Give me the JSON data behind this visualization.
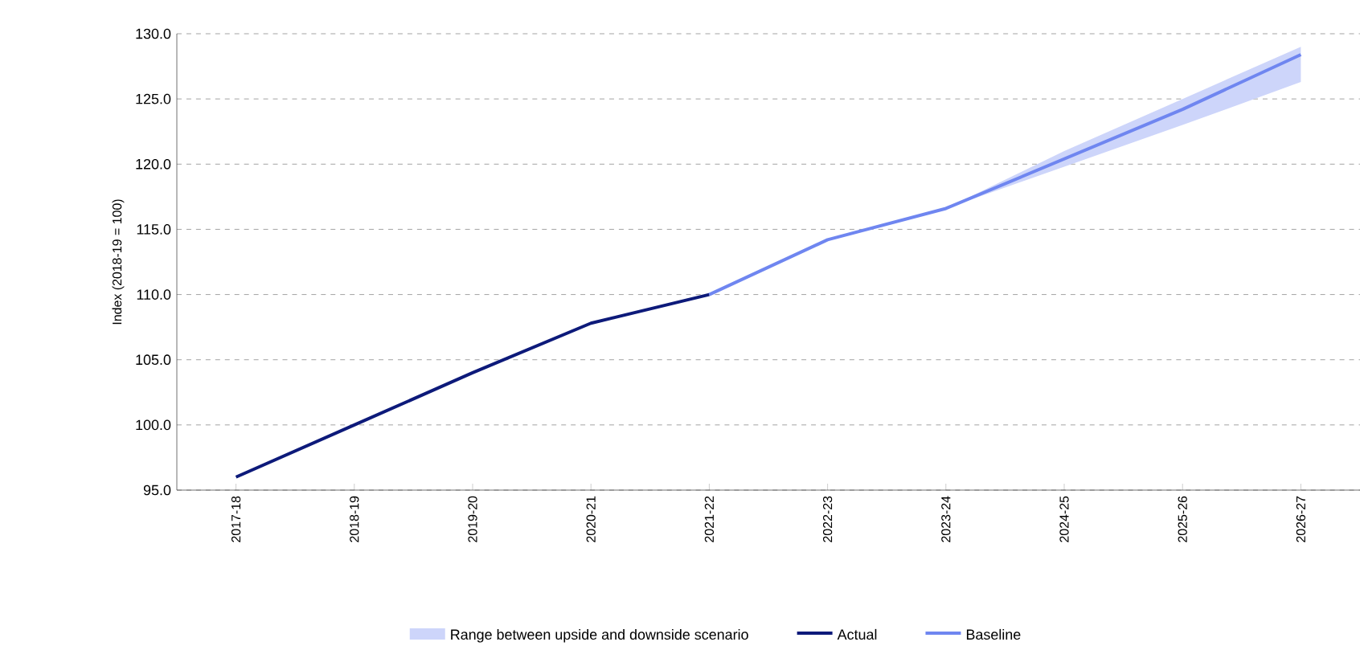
{
  "chart_data": {
    "type": "line",
    "ylabel": "Index (2018-19 = 100)",
    "categories": [
      "2017-18",
      "2018-19",
      "2019-20",
      "2020-21",
      "2021-22",
      "2022-23",
      "2023-24",
      "2024-25",
      "2025-26",
      "2026-27"
    ],
    "series": [
      {
        "name": "Actual",
        "color": "#0d1a7a",
        "values": [
          96.0,
          100.0,
          104.0,
          107.8,
          110.0,
          null,
          null,
          null,
          null,
          null
        ]
      },
      {
        "name": "Baseline",
        "color": "#6f86f0",
        "values": [
          null,
          null,
          null,
          null,
          110.0,
          114.2,
          116.6,
          120.4,
          124.2,
          128.4
        ],
        "lower": [
          null,
          null,
          null,
          null,
          null,
          null,
          116.6,
          119.8,
          123.0,
          126.3
        ],
        "upper": [
          null,
          null,
          null,
          null,
          null,
          null,
          116.6,
          121.0,
          125.0,
          129.0
        ]
      }
    ],
    "annotations": [
      "Range between upside and downside scenario"
    ],
    "ylim": [
      95,
      130
    ],
    "yticks": [
      {
        "value": 95,
        "label": "95.0"
      },
      {
        "value": 100,
        "label": "100.0"
      },
      {
        "value": 105,
        "label": "105.0"
      },
      {
        "value": 110,
        "label": "110.0"
      },
      {
        "value": 115,
        "label": "115.0"
      },
      {
        "value": 120,
        "label": "120.0"
      },
      {
        "value": 125,
        "label": "125.0"
      },
      {
        "value": 130,
        "label": "130.0"
      }
    ],
    "grid": "y",
    "legend": "bottom",
    "line_style": "solid",
    "marker": "none"
  }
}
